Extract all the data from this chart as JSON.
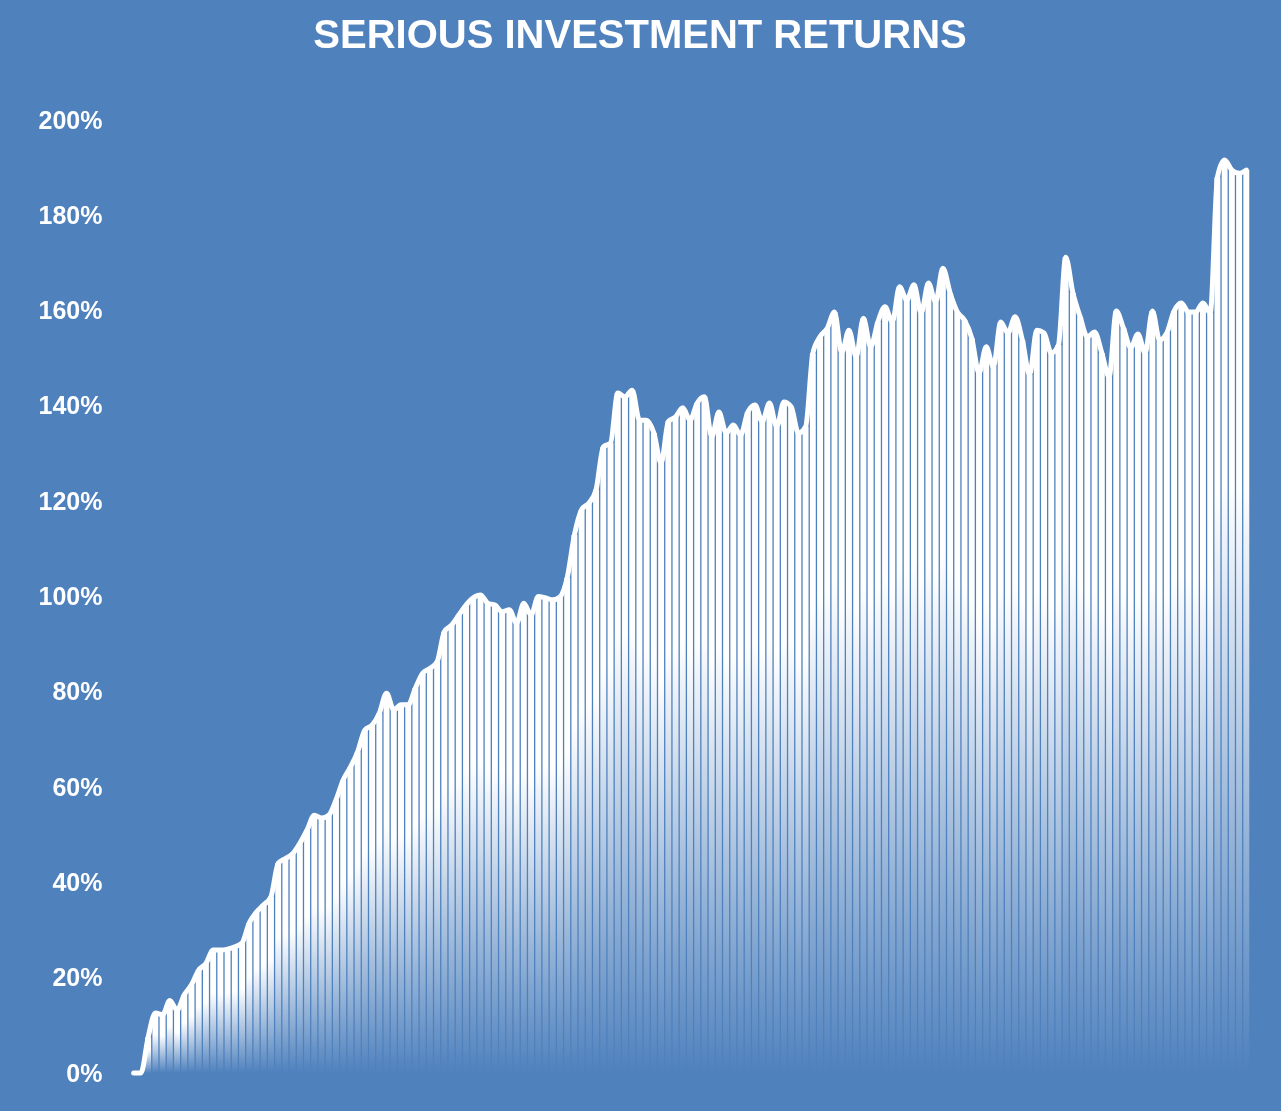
{
  "chart_data": {
    "type": "bar",
    "title": "SERIOUS INVESTMENT RETURNS",
    "categories": [
      null,
      null,
      null,
      null,
      null,
      null,
      null,
      null,
      null,
      null,
      null,
      null,
      null,
      null,
      null,
      null,
      null,
      null,
      null,
      null,
      null,
      null,
      null,
      null,
      null,
      null,
      null,
      null,
      null,
      null,
      null,
      null,
      null,
      null,
      null,
      null,
      null,
      null,
      null,
      null,
      null,
      null,
      null,
      null,
      null,
      null,
      null,
      null,
      null,
      null,
      null,
      null,
      null,
      null,
      null,
      null,
      null,
      null,
      null,
      null,
      null,
      null,
      null,
      null,
      null,
      null,
      null,
      null,
      null,
      null,
      null,
      null,
      null,
      null,
      null,
      null,
      null,
      null,
      null,
      null,
      null,
      null,
      null,
      null,
      null,
      null,
      null,
      null,
      null,
      null,
      null,
      null,
      null,
      null,
      null,
      null,
      null,
      null,
      null,
      null,
      null,
      null,
      null,
      null,
      null,
      null,
      null,
      null,
      null,
      null,
      null,
      null,
      null,
      null,
      null,
      null,
      null,
      null,
      null,
      null,
      null,
      null,
      null,
      null,
      null,
      null,
      null,
      null,
      null,
      null,
      null,
      null,
      null,
      null,
      null,
      null,
      null,
      null,
      null,
      null,
      null,
      null,
      null,
      null,
      null,
      null,
      null,
      null,
      null,
      null,
      null,
      null,
      null,
      null,
      null
    ],
    "series": [
      {
        "color": "#ffffff",
        "values": [
          0,
          0,
          7.5,
          12.6,
          12.2,
          15.2,
          13.2,
          16.4,
          18.5,
          21.6,
          23,
          25.8,
          25.8,
          26,
          26.5,
          27.3,
          31.5,
          33.8,
          35.3,
          37,
          44,
          45,
          46,
          48.2,
          51,
          54.1,
          53.5,
          54.1,
          57.3,
          61.5,
          64.2,
          67.4,
          72,
          73,
          75.5,
          79.7,
          76.2,
          77.3,
          77.3,
          80.8,
          83.9,
          84.9,
          86.3,
          92.6,
          94,
          96.1,
          98.2,
          99.7,
          100.3,
          98.6,
          98.2,
          96.8,
          97.2,
          94.4,
          98.6,
          96.1,
          100,
          99.7,
          99.3,
          99.9,
          103.9,
          112.9,
          118.2,
          119.6,
          122.4,
          131.4,
          132.2,
          142.7,
          141.9,
          143.3,
          137,
          137,
          134.3,
          128,
          136.7,
          137.7,
          139.6,
          137,
          140.6,
          141.9,
          133.5,
          138.7,
          134.3,
          136,
          133.9,
          138.7,
          140.2,
          136.7,
          140.6,
          135.6,
          140.8,
          139.8,
          134.3,
          135.6,
          151,
          154.5,
          156.3,
          159.7,
          151.1,
          155.9,
          150.3,
          158.4,
          152.4,
          157.6,
          160.8,
          157.6,
          165,
          162.2,
          165.4,
          159.5,
          165.8,
          161.8,
          168.9,
          163.7,
          159.7,
          158,
          154.2,
          146.9,
          152.4,
          148.2,
          157.6,
          155.3,
          158.7,
          153.8,
          146.5,
          155.9,
          155.3,
          151.1,
          152.8,
          171.2,
          163.7,
          158.7,
          154.5,
          155.5,
          151.1,
          146.1,
          159.9,
          156.3,
          152.2,
          155.1,
          151.1,
          159.9,
          153.8,
          155.3,
          159.9,
          161.6,
          159.7,
          159.7,
          161.6,
          159.5,
          188,
          191.6,
          189.5,
          188.8,
          189.5
        ]
      },
      {
        "type": "line",
        "color": "#ffffff",
        "values": [
          0,
          0,
          7.5,
          12.6,
          12.2,
          15.2,
          13.2,
          16.4,
          18.5,
          21.6,
          23,
          25.8,
          25.8,
          26,
          26.5,
          27.3,
          31.5,
          33.8,
          35.3,
          37,
          44,
          45,
          46,
          48.2,
          51,
          54.1,
          53.5,
          54.1,
          57.3,
          61.5,
          64.2,
          67.4,
          72,
          73,
          75.5,
          79.7,
          76.2,
          77.3,
          77.3,
          80.8,
          83.9,
          84.9,
          86.3,
          92.6,
          94,
          96.1,
          98.2,
          99.7,
          100.3,
          98.6,
          98.2,
          96.8,
          97.2,
          94.4,
          98.6,
          96.1,
          100,
          99.7,
          99.3,
          99.9,
          103.9,
          112.9,
          118.2,
          119.6,
          122.4,
          131.4,
          132.2,
          142.7,
          141.9,
          143.3,
          137,
          137,
          134.3,
          128,
          136.7,
          137.7,
          139.6,
          137,
          140.6,
          141.9,
          133.5,
          138.7,
          134.3,
          136,
          133.9,
          138.7,
          140.2,
          136.7,
          140.6,
          135.6,
          140.8,
          139.8,
          134.3,
          135.6,
          151,
          154.5,
          156.3,
          159.7,
          151.1,
          155.9,
          150.3,
          158.4,
          152.4,
          157.6,
          160.8,
          157.6,
          165,
          162.2,
          165.4,
          159.5,
          165.8,
          161.8,
          168.9,
          163.7,
          159.7,
          158,
          154.2,
          146.9,
          152.4,
          148.2,
          157.6,
          155.3,
          158.7,
          153.8,
          146.5,
          155.9,
          155.3,
          151.1,
          152.8,
          171.2,
          163.7,
          158.7,
          154.5,
          155.5,
          151.1,
          146.1,
          159.9,
          156.3,
          152.2,
          155.1,
          151.1,
          159.9,
          153.8,
          155.3,
          159.9,
          161.6,
          159.7,
          159.7,
          161.6,
          159.5,
          188,
          191.6,
          189.5,
          188.8,
          189.5
        ]
      }
    ],
    "ylim": [
      0,
      200
    ],
    "yticks": [
      {
        "value": 0,
        "label": "0%"
      },
      {
        "value": 20,
        "label": "20%"
      },
      {
        "value": 40,
        "label": "40%"
      },
      {
        "value": 60,
        "label": "60%"
      },
      {
        "value": 80,
        "label": "80%"
      },
      {
        "value": 100,
        "label": "100%"
      },
      {
        "value": 120,
        "label": "120%"
      },
      {
        "value": 140,
        "label": "140%"
      },
      {
        "value": 160,
        "label": "160%"
      },
      {
        "value": 180,
        "label": "180%"
      },
      {
        "value": 200,
        "label": "200%"
      }
    ],
    "tick_labels": "y",
    "grid": false,
    "legend": false,
    "marker": "none",
    "line_style": "solid"
  }
}
